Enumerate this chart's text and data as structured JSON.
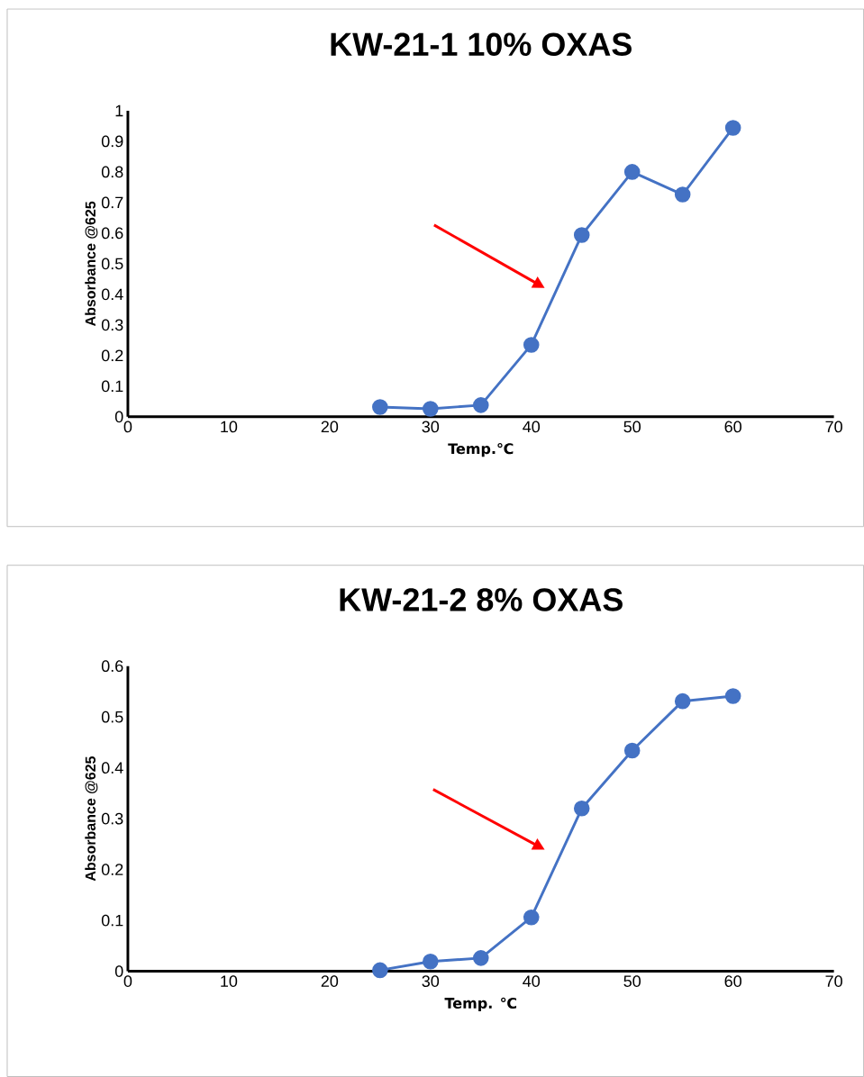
{
  "chart_data": [
    {
      "type": "line",
      "title": "KW-21-1 10% OXAS",
      "xlabel": "Temp.℃",
      "ylabel": "Absorbance @625",
      "x": [
        25,
        30,
        35,
        40,
        45,
        50,
        55,
        60
      ],
      "series": [
        {
          "color": "#4472c4",
          "values": [
            0.032,
            0.026,
            0.038,
            0.235,
            0.594,
            0.8,
            0.726,
            0.944
          ]
        }
      ],
      "xlim": [
        0,
        70
      ],
      "xticks": [
        0,
        10,
        20,
        30,
        40,
        50,
        60,
        70
      ],
      "ylim": [
        0,
        1
      ],
      "yticks": [
        0,
        0.1,
        0.2,
        0.3,
        0.4,
        0.5,
        0.6,
        0.7,
        0.8,
        0.9,
        1
      ],
      "marker": "circle",
      "line_style": "solid"
    },
    {
      "type": "line",
      "title": "KW-21-2 8% OXAS",
      "xlabel": "Temp. ℃",
      "ylabel": "Absorbance @625",
      "x": [
        25,
        30,
        35,
        40,
        45,
        50,
        55,
        60
      ],
      "series": [
        {
          "color": "#4472c4",
          "values": [
            0.002,
            0.019,
            0.026,
            0.106,
            0.32,
            0.434,
            0.531,
            0.541
          ]
        }
      ],
      "xlim": [
        0,
        70
      ],
      "xticks": [
        0,
        10,
        20,
        30,
        40,
        50,
        60,
        70
      ],
      "ylim": [
        0,
        0.6
      ],
      "yticks": [
        0,
        0.1,
        0.2,
        0.3,
        0.4,
        0.5,
        0.6
      ],
      "marker": "circle",
      "line_style": "solid"
    }
  ]
}
